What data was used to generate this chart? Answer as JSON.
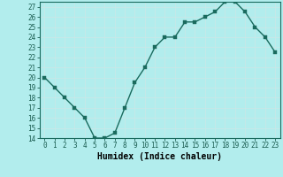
{
  "title": "",
  "xlabel": "Humidex (Indice chaleur)",
  "x": [
    0,
    1,
    2,
    3,
    4,
    5,
    6,
    7,
    8,
    9,
    10,
    11,
    12,
    13,
    14,
    15,
    16,
    17,
    18,
    19,
    20,
    21,
    22,
    23
  ],
  "y": [
    20,
    19,
    18,
    17,
    16,
    14,
    14,
    14.5,
    17,
    19.5,
    21,
    23,
    24,
    24,
    25.5,
    25.5,
    26,
    26.5,
    27.5,
    27.5,
    26.5,
    25,
    24,
    22.5
  ],
  "ylim": [
    14,
    27.5
  ],
  "xlim": [
    -0.5,
    23.5
  ],
  "yticks": [
    14,
    15,
    16,
    17,
    18,
    19,
    20,
    21,
    22,
    23,
    24,
    25,
    26,
    27
  ],
  "xticks": [
    0,
    1,
    2,
    3,
    4,
    5,
    6,
    7,
    8,
    9,
    10,
    11,
    12,
    13,
    14,
    15,
    16,
    17,
    18,
    19,
    20,
    21,
    22,
    23
  ],
  "line_color": "#1a6b5e",
  "marker_color": "#1a6b5e",
  "bg_color": "#b2eded",
  "grid_color": "#c8e8e8",
  "tick_label_fontsize": 5.5,
  "xlabel_fontsize": 7,
  "marker_size": 2.5,
  "line_width": 1.0
}
